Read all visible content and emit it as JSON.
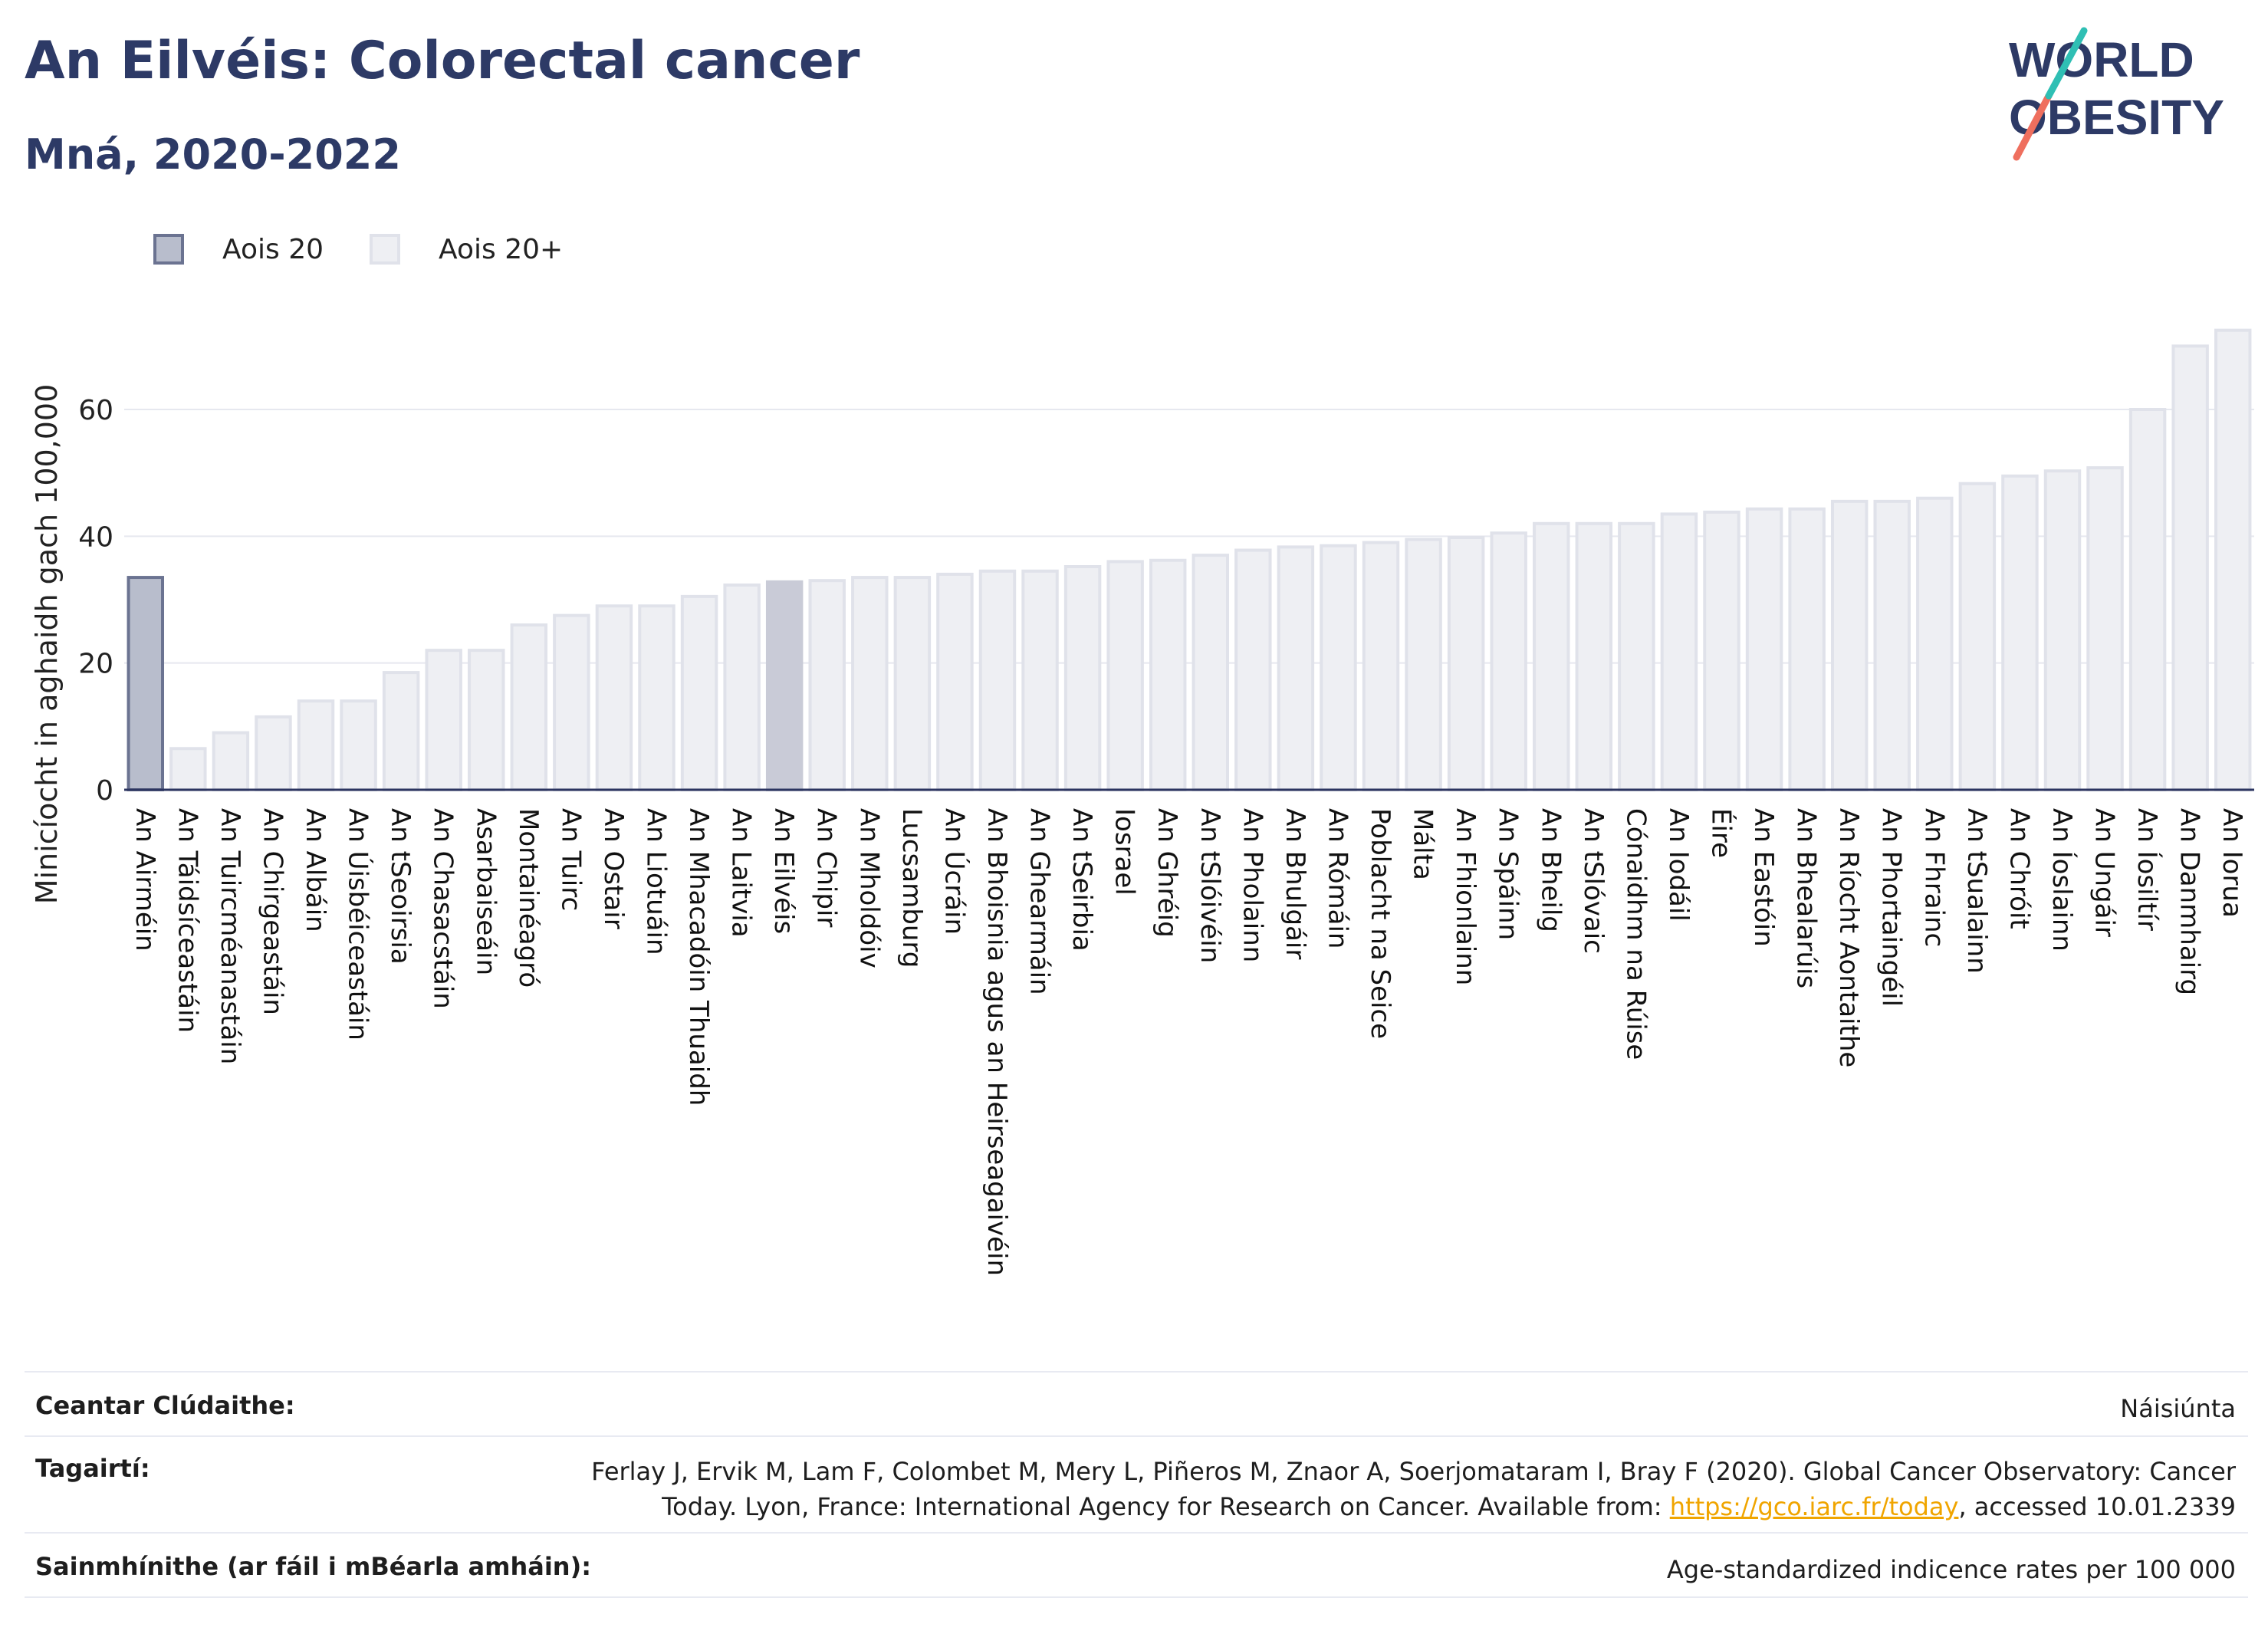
{
  "header": {
    "title": "An Eilvéis: Colorectal cancer",
    "subtitle": "Mná, 2020-2022"
  },
  "logo": {
    "line1": "WORLD",
    "line2": "OBESITY"
  },
  "legend": {
    "items": [
      {
        "label": "Aois 20",
        "color": "#b8bdcc"
      },
      {
        "label": "Aois 20+",
        "color": "#eeeff3"
      }
    ]
  },
  "colors": {
    "highlight_fill": "#c9cbd7",
    "first_fill": "#b8bdcc",
    "first_stroke": "#6b7391",
    "bar_fill": "#eeeff3",
    "bar_stroke": "#e0e2ea",
    "axis": "#2c3560",
    "grid": "#e6e8ef",
    "link": "#f0a500"
  },
  "chart_data": {
    "type": "bar",
    "ylabel": "Minicíocht in aghaidh gach 100,000",
    "ylim": [
      0,
      75
    ],
    "yticks": [
      0,
      20,
      40,
      60
    ],
    "grid": true,
    "legend_position": "top-left",
    "categories": [
      "An Airméin",
      "An Táidsíceastáin",
      "An Tuircméanastáin",
      "An Chirgeastáin",
      "An Albáin",
      "An Úisbéiceastáin",
      "An tSeoirsia",
      "An Chasacstáin",
      "Asarbaiseáin",
      "Montainéagró",
      "An Tuirc",
      "An Ostair",
      "An Liotuáin",
      "An Mhacadóin Thuaidh",
      "An Laitvia",
      "An Eilvéis",
      "An Chipir",
      "An Mholdóiv",
      "Lucsamburg",
      "An Úcráin",
      "An Bhoisnia agus an Heirseagaivéin",
      "An Ghearmáin",
      "An tSeirbia",
      "Iosrael",
      "An Ghréig",
      "An tSlóivéin",
      "An Pholainn",
      "An Bhulgáir",
      "An Rómáin",
      "Poblacht na Seice",
      "Málta",
      "An Fhionlainn",
      "An Spáinn",
      "An Bheilg",
      "An tSlóvaic",
      "Cónaidhm na Rúise",
      "An Iodáil",
      "Éire",
      "An Eastóin",
      "An Bhealarúis",
      "An Ríocht Aontaithe",
      "An Phortaingéil",
      "An Fhrainc",
      "An tSualainn",
      "An Chróit",
      "An Íoslainn",
      "An Ungáir",
      "An Íosiltír",
      "An Danmhairg",
      "An Iorua"
    ],
    "values": [
      33.5,
      6.5,
      9,
      11.5,
      14,
      14,
      18.5,
      22,
      22,
      26,
      27.5,
      29,
      29,
      30.5,
      32.3,
      32.8,
      33,
      33.5,
      33.5,
      34,
      34.5,
      34.5,
      35.2,
      36,
      36.2,
      37,
      37.8,
      38.3,
      38.5,
      39,
      39.5,
      39.8,
      40.5,
      42,
      42,
      42,
      43.5,
      43.8,
      44.3,
      44.3,
      45.5,
      45.5,
      46,
      48.3,
      49.5,
      50.3,
      50.8,
      60,
      70,
      72.5
    ],
    "series_group": [
      "Aois 20",
      "Aois 20+",
      "Aois 20+",
      "Aois 20+",
      "Aois 20+",
      "Aois 20+",
      "Aois 20+",
      "Aois 20+",
      "Aois 20+",
      "Aois 20+",
      "Aois 20+",
      "Aois 20+",
      "Aois 20+",
      "Aois 20+",
      "Aois 20+",
      "Aois 20+",
      "Aois 20+",
      "Aois 20+",
      "Aois 20+",
      "Aois 20+",
      "Aois 20+",
      "Aois 20+",
      "Aois 20+",
      "Aois 20+",
      "Aois 20+",
      "Aois 20+",
      "Aois 20+",
      "Aois 20+",
      "Aois 20+",
      "Aois 20+",
      "Aois 20+",
      "Aois 20+",
      "Aois 20+",
      "Aois 20+",
      "Aois 20+",
      "Aois 20+",
      "Aois 20+",
      "Aois 20+",
      "Aois 20+",
      "Aois 20+",
      "Aois 20+",
      "Aois 20+",
      "Aois 20+",
      "Aois 20+",
      "Aois 20+",
      "Aois 20+",
      "Aois 20+",
      "Aois 20+",
      "Aois 20+",
      "Aois 20+"
    ],
    "highlight": "An Eilvéis"
  },
  "meta": {
    "coverage_label": "Ceantar Clúdaithe:",
    "coverage_value": "Náisiúnta",
    "references_label": "Tagairtí:",
    "references_line1": "Ferlay J, Ervik M, Lam F, Colombet M, Mery L, Piñeros M, Znaor A, Soerjomataram I, Bray F (2020). Global Cancer Observatory: Cancer",
    "references_line2_prefix": "Today. Lyon, France: International Agency for Research on Cancer. Available from: ",
    "references_link": "https://gco.iarc.fr/today",
    "references_line2_suffix": ", accessed 10.01.2339",
    "definitions_label": "Sainmhínithe (ar fáil i mBéarla amháin):",
    "definitions_value": "Age-standardized indicence rates per 100 000"
  }
}
